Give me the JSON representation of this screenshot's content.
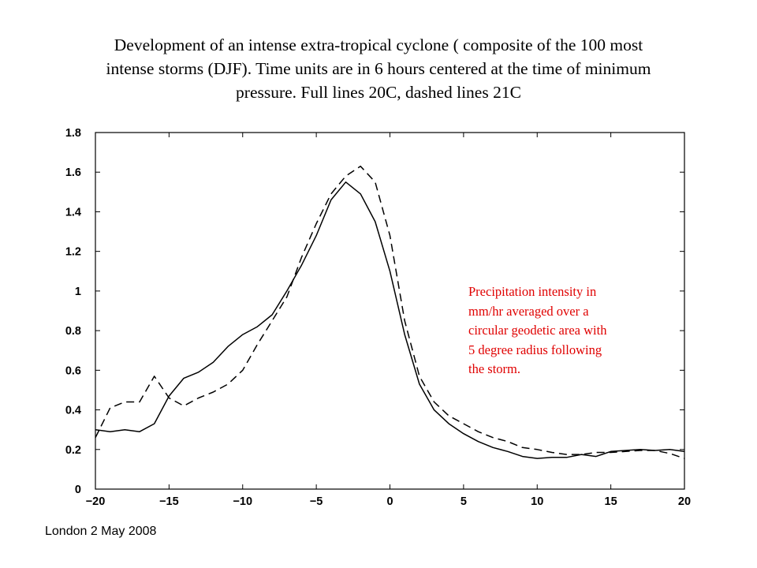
{
  "title_lines": [
    "Development of an intense extra-tropical cyclone ( composite of the 100 most",
    "intense storms (DJF). Time units are in 6 hours centered at the time of minimum",
    "pressure. Full lines 20C, dashed lines 21C"
  ],
  "annotation_lines": [
    "Precipitation intensity in",
    "mm/hr averaged over a",
    "circular geodetic  area with",
    "5 degree radius following",
    "the storm."
  ],
  "footer": "London 2 May 2008",
  "colors": {
    "annotation": "#e00000",
    "lines": "#000000"
  },
  "chart_data": {
    "type": "line",
    "title": "",
    "xlabel": "",
    "ylabel": "",
    "xlim": [
      -20,
      20
    ],
    "ylim": [
      0,
      1.8
    ],
    "x_ticks": [
      -20,
      -15,
      -10,
      -5,
      0,
      5,
      10,
      15,
      20
    ],
    "x_tick_labels": [
      "−20",
      "−15",
      "−10",
      "−5",
      "0",
      "5",
      "10",
      "15",
      "20"
    ],
    "y_ticks": [
      0,
      0.2,
      0.4,
      0.6,
      0.8,
      1,
      1.2,
      1.4,
      1.6,
      1.8
    ],
    "y_tick_labels": [
      "0",
      "0.2",
      "0.4",
      "0.6",
      "0.8",
      "1",
      "1.2",
      "1.4",
      "1.6",
      "1.8"
    ],
    "grid": false,
    "x": [
      -20,
      -19,
      -18,
      -17,
      -16,
      -15,
      -14,
      -13,
      -12,
      -11,
      -10,
      -9,
      -8,
      -7,
      -6,
      -5,
      -4,
      -3,
      -2,
      -1,
      0,
      1,
      2,
      3,
      4,
      5,
      6,
      7,
      8,
      9,
      10,
      11,
      12,
      13,
      14,
      15,
      16,
      17,
      18,
      19,
      20
    ],
    "series": [
      {
        "style": "solid",
        "values": [
          0.3,
          0.29,
          0.3,
          0.29,
          0.33,
          0.47,
          0.56,
          0.59,
          0.64,
          0.72,
          0.78,
          0.82,
          0.88,
          1.0,
          1.13,
          1.28,
          1.46,
          1.55,
          1.49,
          1.35,
          1.1,
          0.78,
          0.53,
          0.4,
          0.33,
          0.28,
          0.24,
          0.21,
          0.19,
          0.165,
          0.155,
          0.16,
          0.16,
          0.175,
          0.165,
          0.19,
          0.195,
          0.2,
          0.195,
          0.2,
          0.19
        ]
      },
      {
        "style": "dashed",
        "values": [
          0.26,
          0.41,
          0.44,
          0.44,
          0.57,
          0.46,
          0.42,
          0.46,
          0.49,
          0.53,
          0.6,
          0.73,
          0.85,
          0.97,
          1.17,
          1.34,
          1.49,
          1.58,
          1.63,
          1.55,
          1.28,
          0.85,
          0.57,
          0.44,
          0.37,
          0.33,
          0.29,
          0.26,
          0.24,
          0.21,
          0.2,
          0.185,
          0.175,
          0.175,
          0.185,
          0.185,
          0.19,
          0.195,
          0.195,
          0.18,
          0.155
        ]
      }
    ]
  }
}
